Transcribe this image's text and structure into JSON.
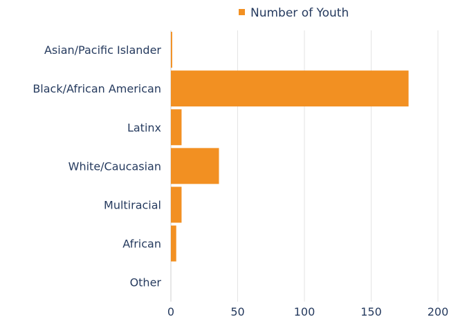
{
  "chart_data": {
    "type": "bar",
    "orientation": "horizontal",
    "categories": [
      "Asian/Pacific Islander",
      "Black/African American",
      "Latinx",
      "White/Caucasian",
      "Multiracial",
      "African",
      "Other"
    ],
    "series": [
      {
        "name": "Number of Youth",
        "values": [
          1,
          178,
          8,
          36,
          8,
          4,
          0
        ],
        "color": "#f29022"
      }
    ],
    "xlim": [
      0,
      200
    ],
    "xticks": [
      0,
      50,
      100,
      150,
      200
    ],
    "xtick_labels": [
      "0",
      "50",
      "100",
      "150",
      "200"
    ],
    "grid": true,
    "legend_position": "top",
    "title": "",
    "xlabel": "",
    "ylabel": ""
  },
  "colors": {
    "text": "#253a5e",
    "grid": "#e3e3e3",
    "bar": "#f29022"
  }
}
